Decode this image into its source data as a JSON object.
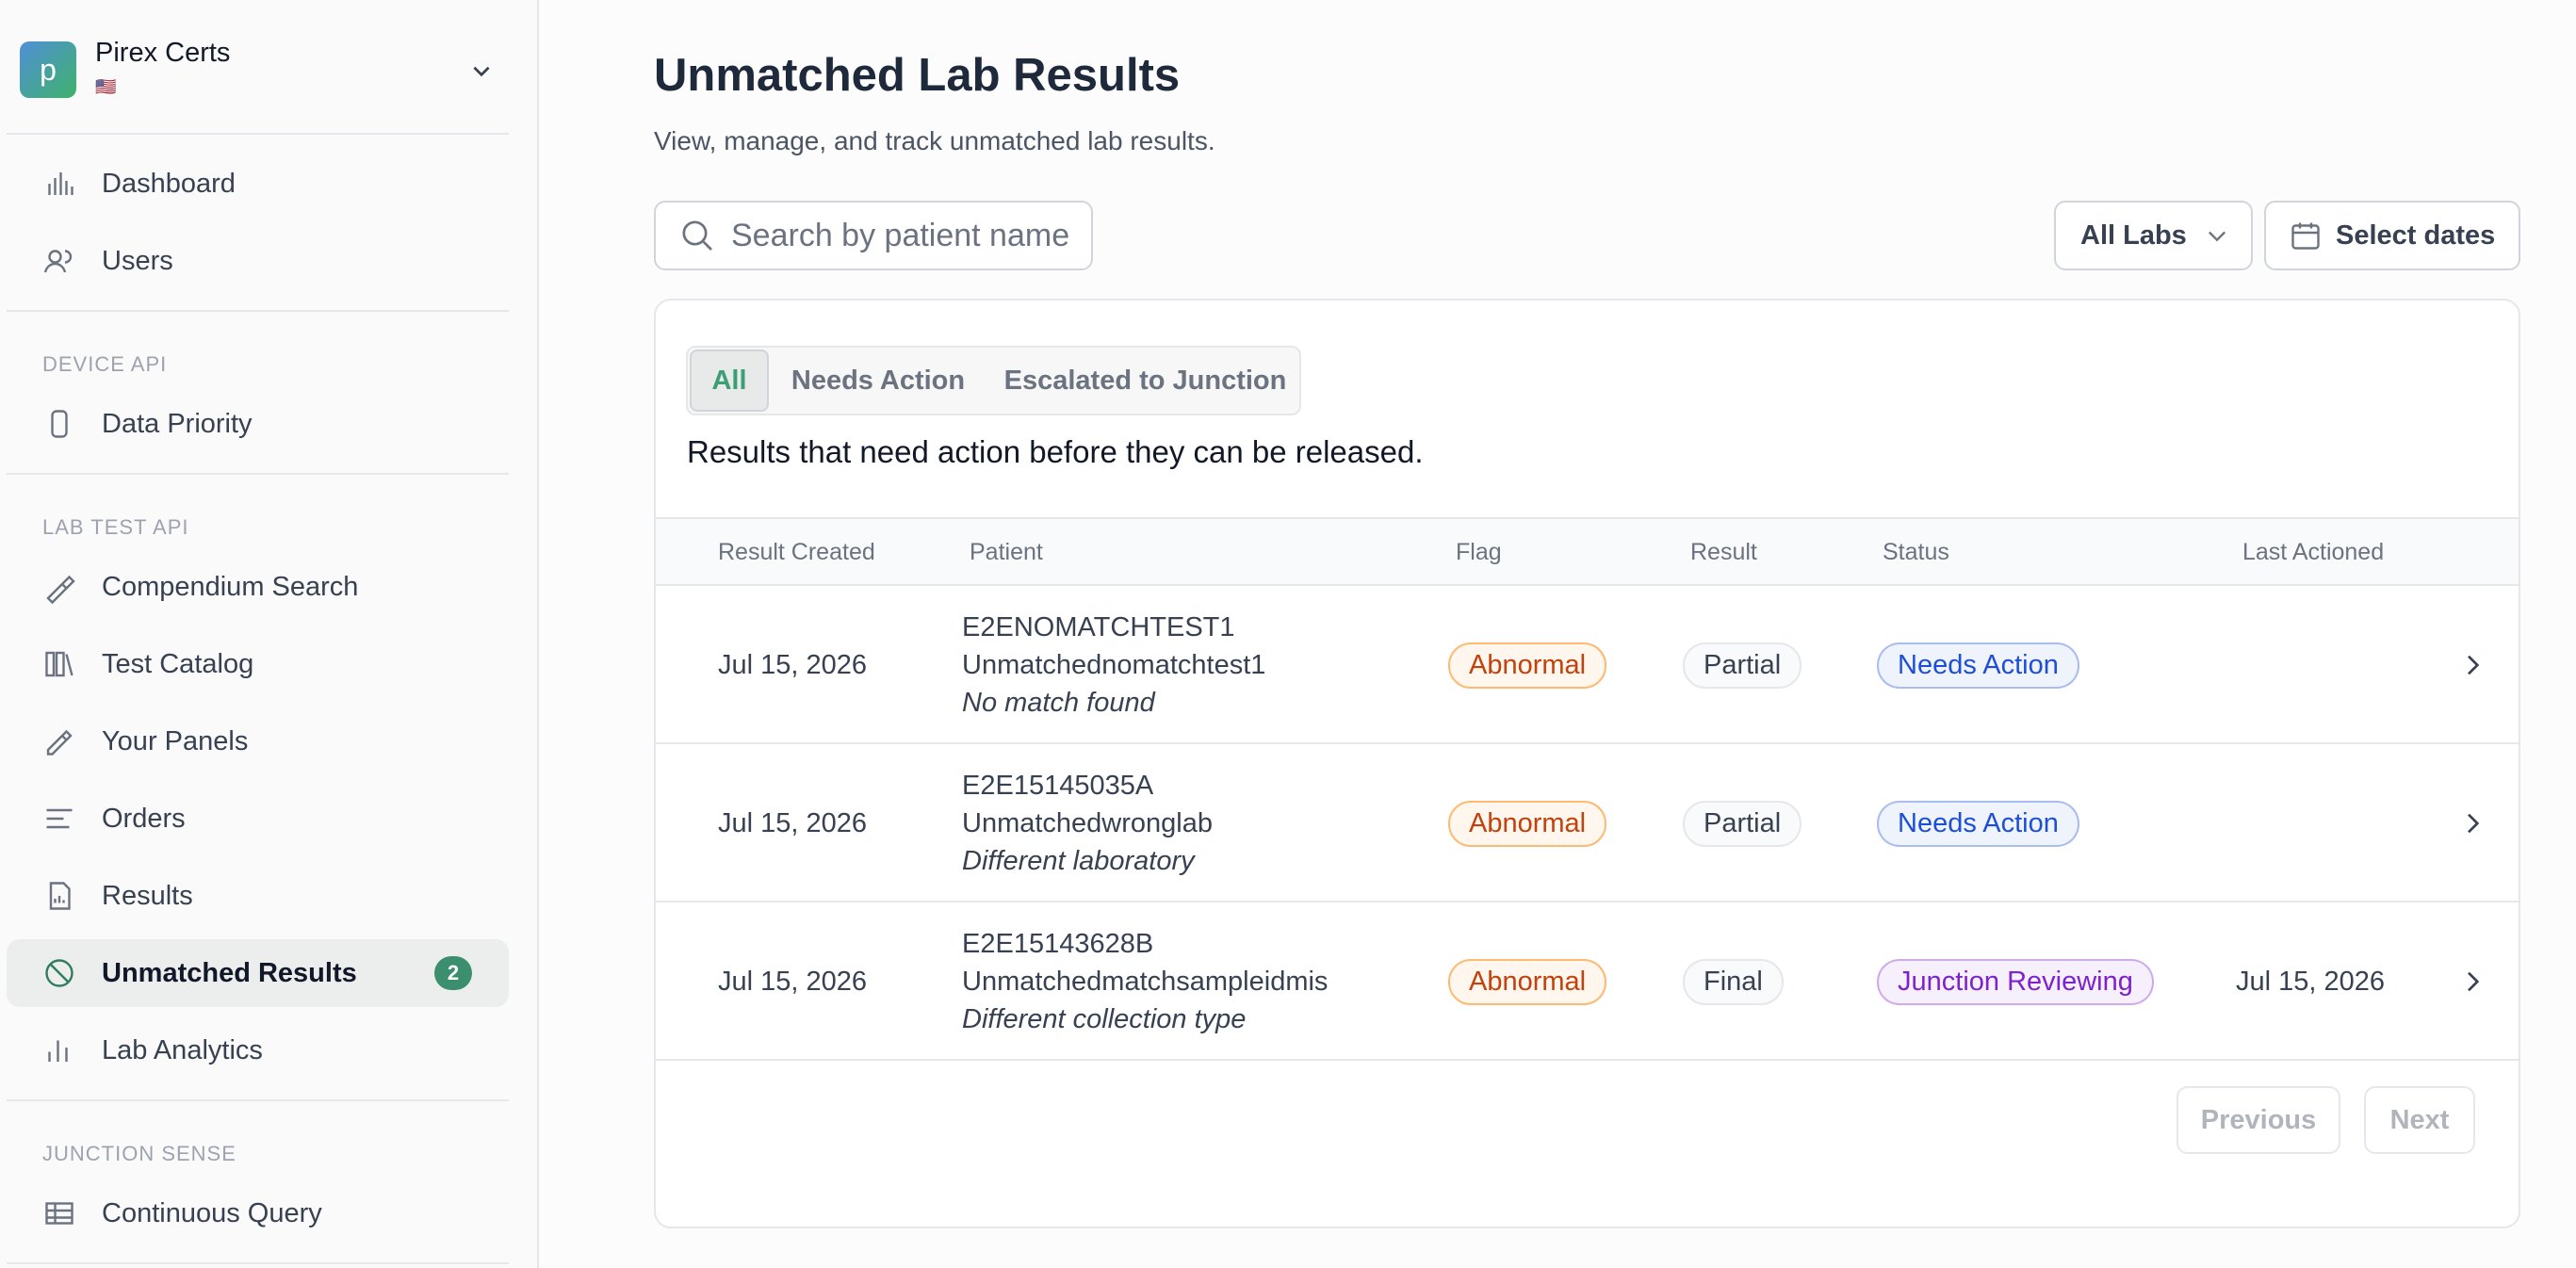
{
  "sidebar": {
    "org_initial": "p",
    "org_name": "Pirex Certs",
    "org_flag": "🇺🇸",
    "top_items": [
      {
        "label": "Dashboard"
      },
      {
        "label": "Users"
      }
    ],
    "sections": [
      {
        "title": "DEVICE API",
        "items": [
          {
            "label": "Data Priority"
          }
        ]
      },
      {
        "title": "LAB TEST API",
        "items": [
          {
            "label": "Compendium Search"
          },
          {
            "label": "Test Catalog"
          },
          {
            "label": "Your Panels"
          },
          {
            "label": "Orders"
          },
          {
            "label": "Results"
          },
          {
            "label": "Unmatched Results",
            "badge": 2,
            "active": true
          },
          {
            "label": "Lab Analytics"
          }
        ]
      },
      {
        "title": "JUNCTION SENSE",
        "items": [
          {
            "label": "Continuous Query"
          }
        ]
      }
    ]
  },
  "header": {
    "title": "Unmatched Lab Results",
    "subtitle": "View, manage, and track unmatched lab results."
  },
  "toolbar": {
    "search_placeholder": "Search by patient name",
    "lab_filter": "All Labs",
    "date_button": "Select dates"
  },
  "tabs": {
    "items": [
      "All",
      "Needs Action",
      "Escalated to Junction"
    ],
    "active": 0,
    "description": "Results that need action before they can be released."
  },
  "table": {
    "columns": [
      "Result Created",
      "Patient",
      "Flag",
      "Result",
      "Status",
      "Last Actioned"
    ],
    "rows": [
      {
        "created": "Jul 15, 2026",
        "patient_id": "E2ENOMATCHTEST1",
        "patient_name": "Unmatchednomatchtest1",
        "note": "No match found",
        "flag": "Abnormal",
        "result": "Partial",
        "status": "Needs Action",
        "status_color": "#1d4ed8"
      },
      {
        "created": "Jul 15, 2026",
        "patient_id": "E2E15145035A",
        "patient_name": "Unmatchedwronglab",
        "note": "Different laboratory",
        "flag": "Abnormal",
        "result": "Partial",
        "status": "Needs Action",
        "status_color": "#1d4ed8"
      },
      {
        "created": "Jul 15, 2026",
        "patient_id": "E2E15143628B",
        "patient_name": "Unmatchedmatchsampleidmis",
        "note": "Different collection type",
        "flag": "Abnormal",
        "result": "Final",
        "status": "Junction Reviewing",
        "status_color": "#7e22ce",
        "last_actioned": "Jul 15, 2026"
      }
    ]
  },
  "pagination": {
    "previous": "Previous",
    "next": "Next"
  }
}
